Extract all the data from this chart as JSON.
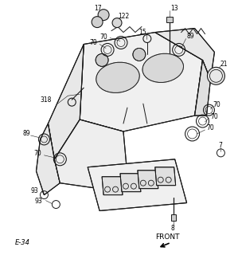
{
  "bg_color": "#ffffff",
  "line_color": "#1a1a1a",
  "gray_color": "#777777",
  "light_gray": "#bbbbbb",
  "figsize": [
    2.99,
    3.2
  ],
  "dpi": 100
}
